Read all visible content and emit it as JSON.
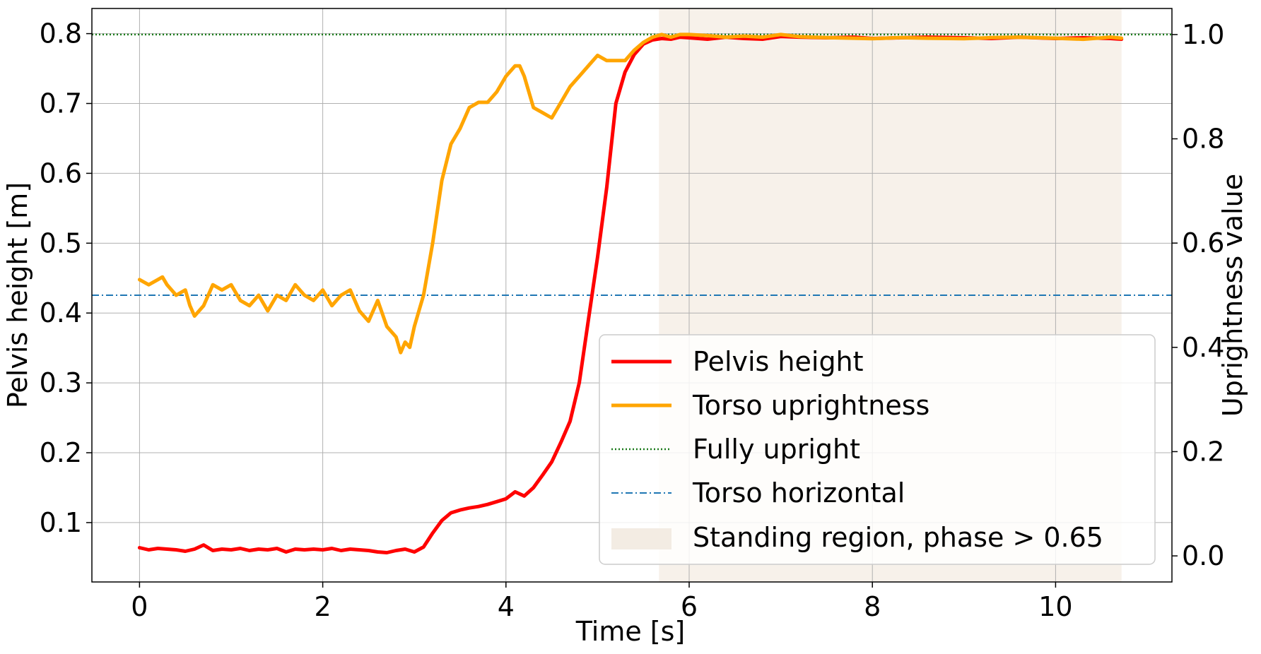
{
  "chart_data": {
    "type": "line",
    "xlabel": "Time [s]",
    "ylabel_left": "Pelvis height [m]",
    "ylabel_right": "Uprightness value",
    "xlim": [
      -0.52,
      11.27
    ],
    "ylim_left": [
      0.015,
      0.836
    ],
    "ylim_right": [
      -0.05,
      1.05
    ],
    "x_ticks": [
      "0",
      "2",
      "4",
      "6",
      "8",
      "10"
    ],
    "y_left_ticks": [
      "0.1",
      "0.2",
      "0.3",
      "0.4",
      "0.5",
      "0.6",
      "0.7",
      "0.8"
    ],
    "y_right_ticks": [
      "0.0",
      "0.2",
      "0.4",
      "0.6",
      "0.8",
      "1.0"
    ],
    "grid": true,
    "legend_position": "lower-right",
    "standing_region": {
      "x_start": 5.67,
      "x_end": 10.72,
      "color": "#f7f1ea",
      "label": "Standing region, phase > 0.65"
    },
    "reference_lines": [
      {
        "name": "Fully upright",
        "axis": "right",
        "y": 1.0,
        "color": "#1a7a1a",
        "style": "dotted"
      },
      {
        "name": "Torso horizontal",
        "axis": "right",
        "y": 0.5,
        "color": "#1f77b4",
        "style": "dashdot"
      }
    ],
    "series": [
      {
        "name": "Pelvis height",
        "axis": "left",
        "color": "#ff0000",
        "x": [
          0.0,
          0.1,
          0.2,
          0.3,
          0.4,
          0.5,
          0.6,
          0.7,
          0.8,
          0.9,
          1.0,
          1.1,
          1.2,
          1.3,
          1.4,
          1.5,
          1.6,
          1.7,
          1.8,
          1.9,
          2.0,
          2.1,
          2.2,
          2.3,
          2.4,
          2.5,
          2.6,
          2.7,
          2.8,
          2.9,
          3.0,
          3.1,
          3.2,
          3.3,
          3.4,
          3.5,
          3.6,
          3.7,
          3.8,
          3.9,
          4.0,
          4.1,
          4.2,
          4.3,
          4.4,
          4.5,
          4.6,
          4.7,
          4.8,
          4.9,
          5.0,
          5.1,
          5.2,
          5.3,
          5.4,
          5.5,
          5.6,
          5.7,
          5.8,
          5.9,
          6.0,
          6.2,
          6.4,
          6.6,
          6.8,
          7.0,
          7.2,
          7.5,
          7.8,
          8.0,
          8.3,
          8.6,
          9.0,
          9.3,
          9.6,
          10.0,
          10.3,
          10.6,
          10.72
        ],
        "y": [
          0.064,
          0.061,
          0.063,
          0.062,
          0.061,
          0.059,
          0.062,
          0.068,
          0.06,
          0.062,
          0.061,
          0.063,
          0.06,
          0.062,
          0.061,
          0.063,
          0.058,
          0.062,
          0.061,
          0.062,
          0.061,
          0.063,
          0.06,
          0.062,
          0.061,
          0.06,
          0.058,
          0.057,
          0.06,
          0.062,
          0.058,
          0.065,
          0.085,
          0.103,
          0.114,
          0.118,
          0.121,
          0.123,
          0.126,
          0.13,
          0.134,
          0.144,
          0.138,
          0.15,
          0.168,
          0.187,
          0.215,
          0.245,
          0.3,
          0.39,
          0.48,
          0.58,
          0.7,
          0.745,
          0.77,
          0.785,
          0.791,
          0.793,
          0.792,
          0.795,
          0.794,
          0.792,
          0.795,
          0.793,
          0.792,
          0.796,
          0.795,
          0.794,
          0.795,
          0.793,
          0.794,
          0.795,
          0.794,
          0.793,
          0.795,
          0.793,
          0.794,
          0.793,
          0.792
        ]
      },
      {
        "name": "Torso uprightness",
        "axis": "right",
        "color": "#ffa500",
        "x": [
          0.0,
          0.1,
          0.2,
          0.25,
          0.3,
          0.4,
          0.5,
          0.55,
          0.6,
          0.7,
          0.8,
          0.9,
          1.0,
          1.1,
          1.2,
          1.3,
          1.4,
          1.5,
          1.6,
          1.7,
          1.8,
          1.9,
          2.0,
          2.1,
          2.2,
          2.3,
          2.4,
          2.5,
          2.6,
          2.7,
          2.8,
          2.85,
          2.9,
          2.95,
          3.0,
          3.05,
          3.1,
          3.2,
          3.3,
          3.4,
          3.5,
          3.6,
          3.7,
          3.8,
          3.9,
          4.0,
          4.1,
          4.15,
          4.2,
          4.3,
          4.4,
          4.5,
          4.6,
          4.7,
          4.8,
          4.9,
          5.0,
          5.1,
          5.2,
          5.3,
          5.4,
          5.5,
          5.6,
          5.7,
          5.8,
          5.9,
          6.0,
          6.2,
          6.4,
          6.6,
          6.8,
          7.0,
          7.2,
          7.5,
          7.8,
          8.0,
          8.3,
          8.6,
          9.0,
          9.3,
          9.6,
          10.0,
          10.3,
          10.6,
          10.72
        ],
        "y": [
          0.53,
          0.52,
          0.53,
          0.535,
          0.52,
          0.5,
          0.51,
          0.48,
          0.46,
          0.48,
          0.52,
          0.51,
          0.52,
          0.49,
          0.48,
          0.5,
          0.47,
          0.5,
          0.49,
          0.52,
          0.5,
          0.49,
          0.51,
          0.48,
          0.5,
          0.51,
          0.47,
          0.45,
          0.49,
          0.44,
          0.42,
          0.39,
          0.41,
          0.4,
          0.44,
          0.47,
          0.5,
          0.6,
          0.72,
          0.79,
          0.82,
          0.86,
          0.87,
          0.87,
          0.89,
          0.92,
          0.94,
          0.94,
          0.92,
          0.86,
          0.85,
          0.84,
          0.87,
          0.9,
          0.92,
          0.94,
          0.96,
          0.95,
          0.95,
          0.95,
          0.97,
          0.985,
          0.995,
          1.0,
          0.995,
          1.0,
          1.0,
          0.998,
          0.995,
          0.997,
          0.995,
          1.0,
          0.996,
          0.994,
          0.993,
          0.992,
          0.994,
          0.993,
          0.992,
          0.994,
          0.995,
          0.993,
          0.991,
          0.995,
          0.993
        ]
      }
    ]
  }
}
